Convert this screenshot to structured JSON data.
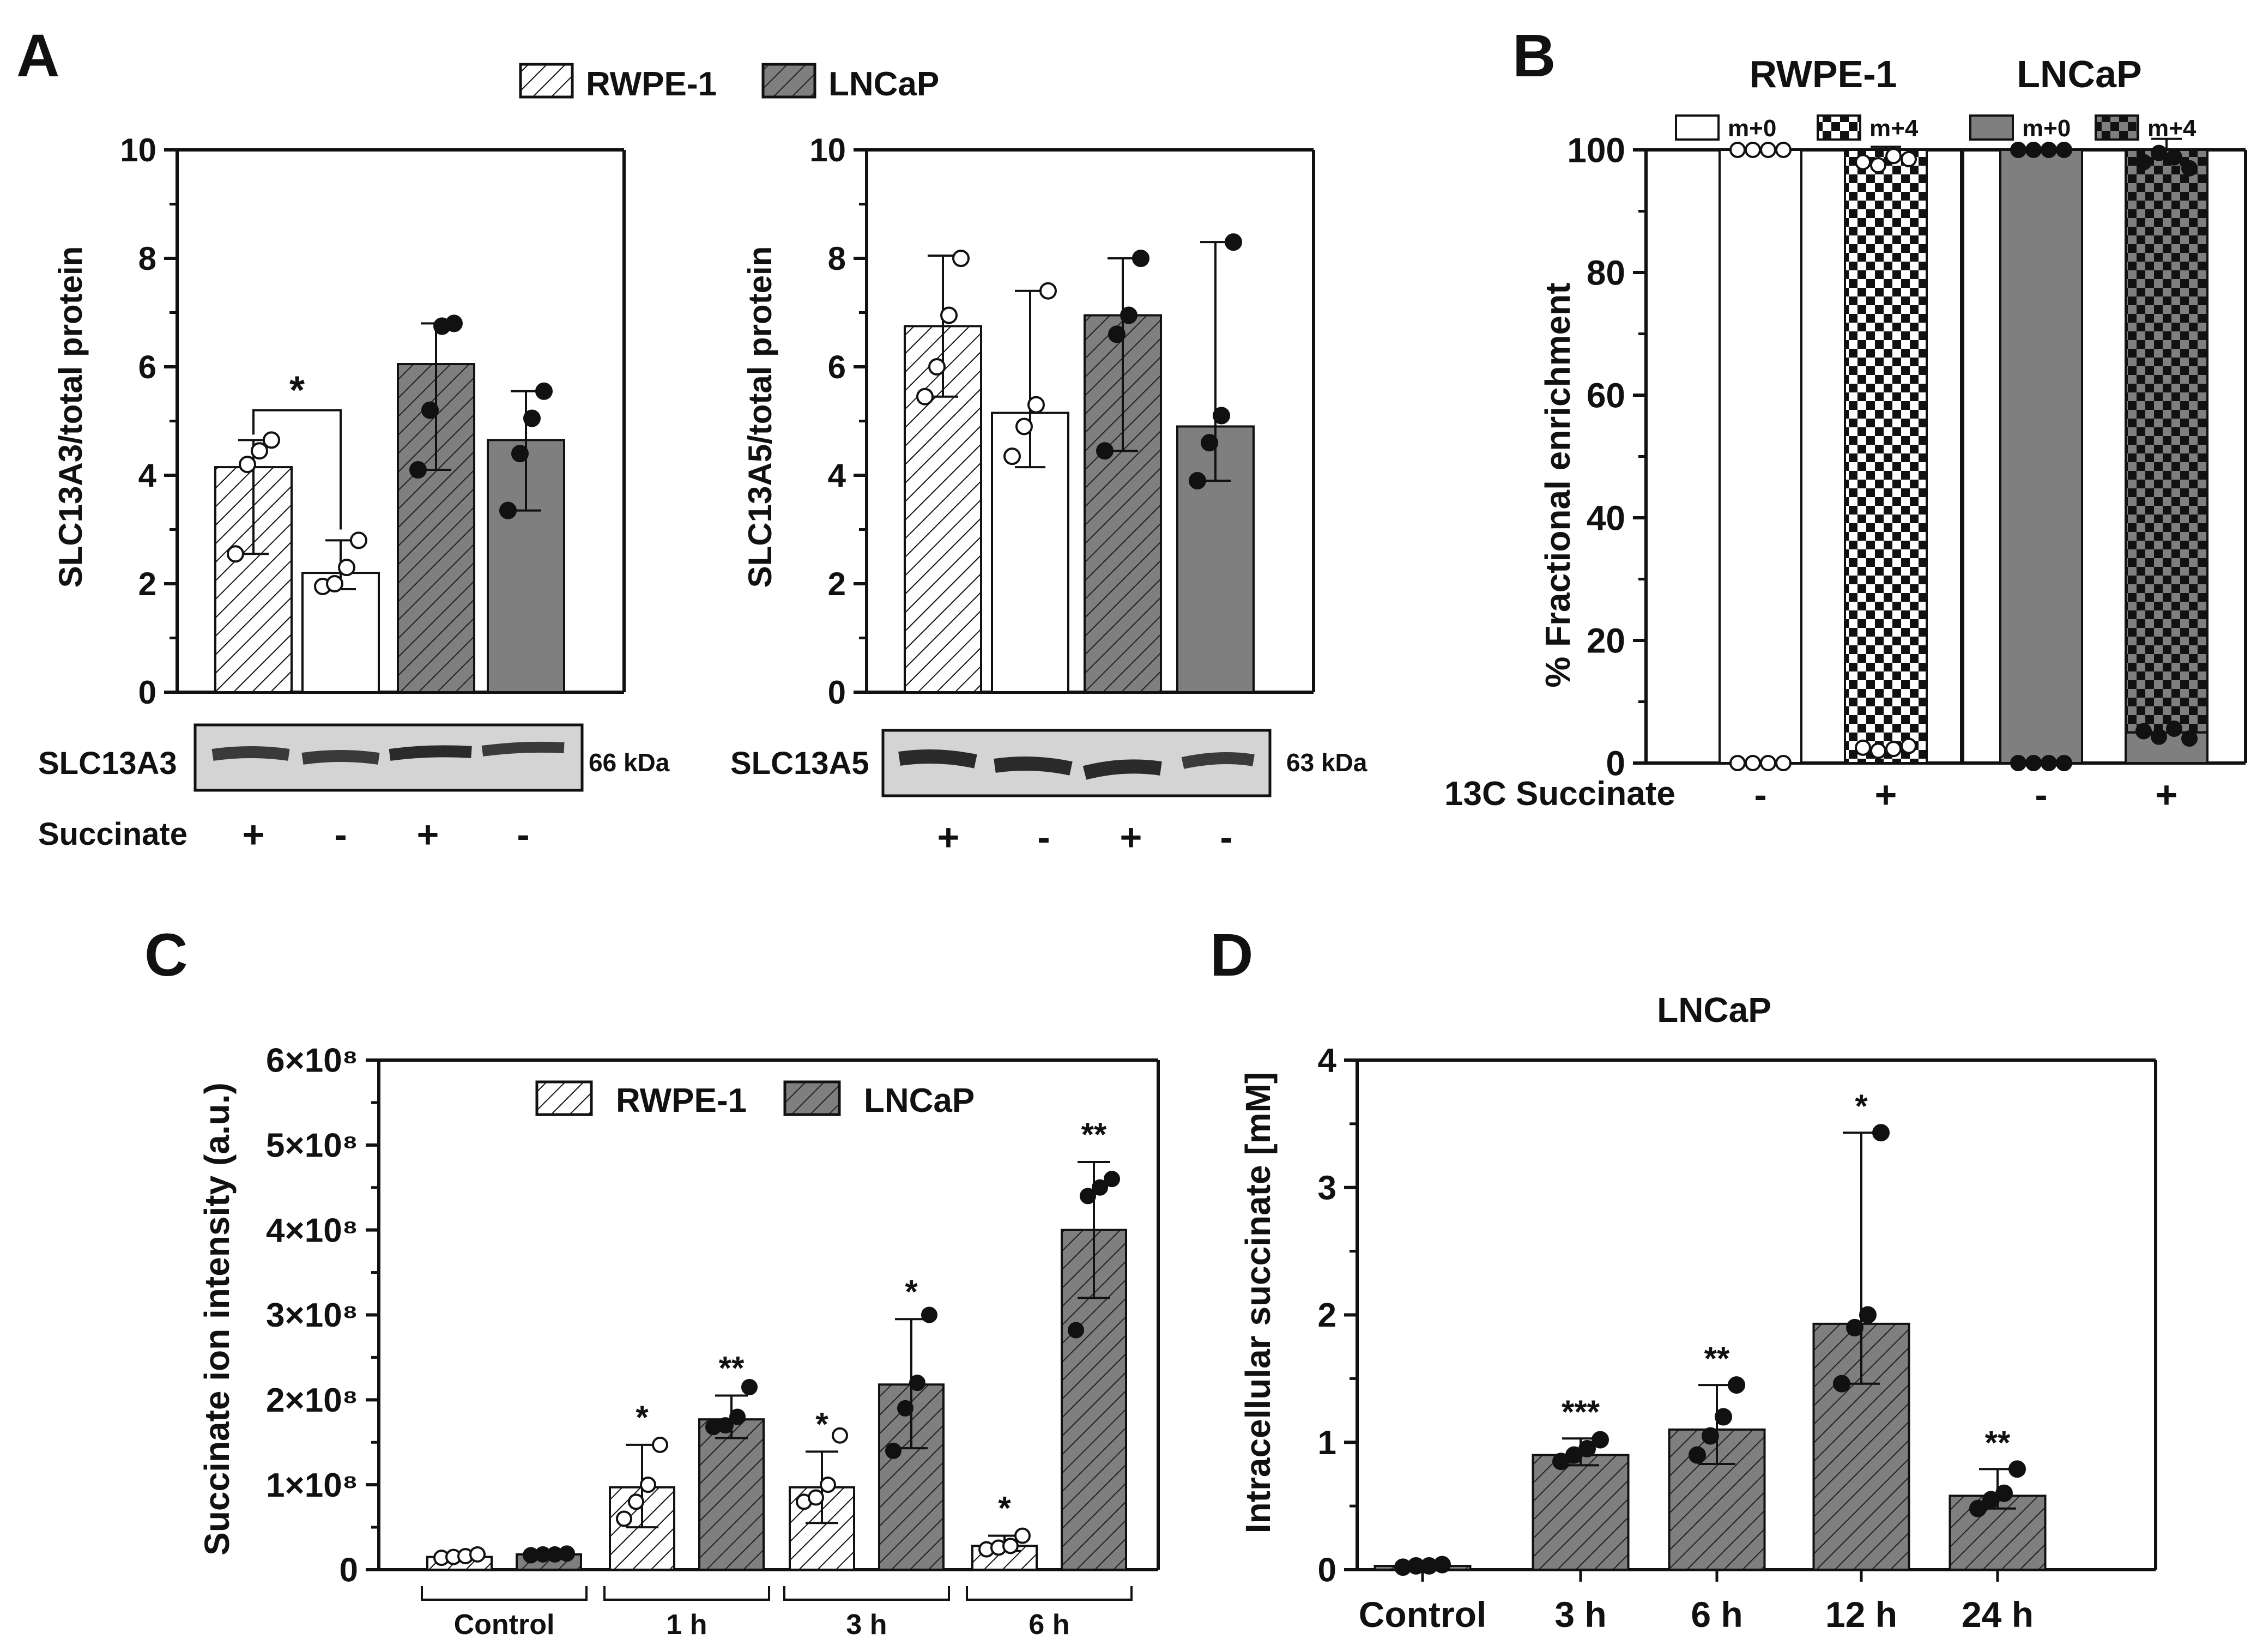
{
  "colors": {
    "lncap_fill": "#7f7f7f",
    "rwpe_fill": "#ffffff",
    "stroke": "#111111",
    "blot_bg": "#d4d4d4",
    "blot_band": "#3a3a3a"
  },
  "chart_data": [
    {
      "panel": "A",
      "id": "A1",
      "type": "bar",
      "title": "",
      "ylabel": "SLC13A3/total protein",
      "ylim": [
        0,
        10
      ],
      "yticks": [
        0,
        2,
        4,
        6,
        8,
        10
      ],
      "legend": {
        "placement": "top-center",
        "entries": [
          {
            "label": "RWPE-1",
            "style": "hatched-white"
          },
          {
            "label": "LNCaP",
            "style": "hatched-grey"
          }
        ]
      },
      "bars": [
        {
          "group": "RWPE-1",
          "succinate": "+",
          "style": "hatched-white",
          "mean": 4.15,
          "err": [
            2.55,
            4.65
          ],
          "points": [
            2.55,
            4.2,
            4.45,
            4.65
          ]
        },
        {
          "group": "RWPE-1",
          "succinate": "-",
          "style": "white",
          "mean": 2.2,
          "err": [
            1.9,
            2.8
          ],
          "points": [
            1.95,
            2.0,
            2.3,
            2.8
          ]
        },
        {
          "group": "LNCaP",
          "succinate": "+",
          "style": "hatched-grey",
          "mean": 6.05,
          "err": [
            4.1,
            6.8
          ],
          "points": [
            4.1,
            5.2,
            6.75,
            6.8
          ]
        },
        {
          "group": "LNCaP",
          "succinate": "-",
          "style": "grey",
          "mean": 4.65,
          "err": [
            3.35,
            5.55
          ],
          "points": [
            3.35,
            4.4,
            5.05,
            5.55
          ]
        }
      ],
      "significance": [
        {
          "from": 0,
          "to": 1,
          "label": "*"
        }
      ],
      "blot": {
        "protein": "SLC13A3",
        "mw": "66 kDa"
      },
      "condition_label": "Succinate",
      "condition_signs": [
        "+",
        "-",
        "+",
        "-"
      ]
    },
    {
      "panel": "A",
      "id": "A2",
      "type": "bar",
      "title": "",
      "ylabel": "SLC13A5/total protein",
      "ylim": [
        0,
        10
      ],
      "yticks": [
        0,
        2,
        4,
        6,
        8,
        10
      ],
      "bars": [
        {
          "group": "RWPE-1",
          "succinate": "+",
          "style": "hatched-white",
          "mean": 6.75,
          "err": [
            5.45,
            8.05
          ],
          "points": [
            5.45,
            6.0,
            6.95,
            8.0
          ]
        },
        {
          "group": "RWPE-1",
          "succinate": "-",
          "style": "white",
          "mean": 5.15,
          "err": [
            4.15,
            7.4
          ],
          "points": [
            4.35,
            4.9,
            5.3,
            7.4
          ]
        },
        {
          "group": "LNCaP",
          "succinate": "+",
          "style": "hatched-grey",
          "mean": 6.95,
          "err": [
            4.45,
            8.0
          ],
          "points": [
            4.45,
            6.6,
            6.95,
            8.0
          ]
        },
        {
          "group": "LNCaP",
          "succinate": "-",
          "style": "grey",
          "mean": 4.9,
          "err": [
            3.9,
            8.3
          ],
          "points": [
            3.9,
            4.6,
            5.1,
            8.3
          ]
        }
      ],
      "blot": {
        "protein": "SLC13A5",
        "mw": "63 kDa"
      },
      "condition_signs": [
        "+",
        "-",
        "+",
        "-"
      ]
    },
    {
      "panel": "B",
      "id": "B",
      "type": "bar",
      "subtype": "stacked",
      "ylabel": "% Fractional enrichment",
      "ylim": [
        0,
        100
      ],
      "yticks": [
        0,
        20,
        40,
        60,
        80,
        100
      ],
      "groups": [
        {
          "name": "RWPE-1",
          "legend": [
            {
              "label": "m+0",
              "style": "white"
            },
            {
              "label": "m+4",
              "style": "checker-white"
            }
          ]
        },
        {
          "name": "LNCaP",
          "legend": [
            {
              "label": "m+0",
              "style": "grey"
            },
            {
              "label": "m+4",
              "style": "checker-grey"
            }
          ]
        }
      ],
      "xlabel": "13C Succinate",
      "bars": [
        {
          "group": "RWPE-1",
          "sign": "-",
          "m0": 100,
          "m4": 0,
          "total": 100,
          "m4_points": [
            0,
            0,
            0,
            0
          ],
          "total_points": [
            100,
            100,
            100,
            100
          ]
        },
        {
          "group": "RWPE-1",
          "sign": "+",
          "m0": 0,
          "m4": 100,
          "total": 100,
          "err_top": 100.5,
          "m4_points": [
            2.5,
            2.0,
            2.3,
            2.8
          ],
          "total_points": [
            98.0,
            97.5,
            99.0,
            98.5
          ]
        },
        {
          "group": "LNCaP",
          "sign": "-",
          "m0": 100,
          "m4": 0,
          "total": 100,
          "m4_points": [
            0,
            0,
            0,
            0
          ],
          "total_points": [
            100,
            100,
            100,
            100
          ]
        },
        {
          "group": "LNCaP",
          "sign": "+",
          "m0": 5,
          "m4": 95,
          "total": 100,
          "err_top": 101.8,
          "m4_points": [
            5.2,
            4.3,
            5.6,
            4.0
          ],
          "total_points": [
            98.0,
            99.5,
            98.8,
            97.0
          ]
        }
      ]
    },
    {
      "panel": "C",
      "id": "C",
      "type": "bar",
      "ylabel": "Succinate ion intensity (a.u.)",
      "ylim": [
        0,
        600000000
      ],
      "yticks": [
        {
          "value": 0,
          "label": "0"
        },
        {
          "value": 100000000,
          "label": "1×10⁸"
        },
        {
          "value": 200000000,
          "label": "2×10⁸"
        },
        {
          "value": 300000000,
          "label": "3×10⁸"
        },
        {
          "value": 400000000,
          "label": "4×10⁸"
        },
        {
          "value": 500000000,
          "label": "5×10⁸"
        },
        {
          "value": 600000000,
          "label": "6×10⁸"
        }
      ],
      "legend": {
        "placement": "top-center",
        "entries": [
          {
            "label": "RWPE-1",
            "style": "hatched-white"
          },
          {
            "label": "LNCaP",
            "style": "hatched-grey"
          }
        ]
      },
      "categories": [
        "Control",
        "1 h",
        "3 h",
        "6 h"
      ],
      "series": [
        {
          "name": "RWPE-1",
          "style": "hatched-white",
          "values": [
            15000000,
            97000000,
            97000000,
            28000000
          ],
          "err": [
            [
              12000000,
              18000000
            ],
            [
              50000000,
              147000000
            ],
            [
              55000000,
              139000000
            ],
            [
              22000000,
              40000000
            ]
          ],
          "points": [
            [
              14000000,
              15000000,
              16000000,
              18000000
            ],
            [
              60000000,
              80000000,
              100000000,
              147000000
            ],
            [
              80000000,
              85000000,
              100000000,
              158000000
            ],
            [
              24000000,
              26000000,
              28000000,
              40000000
            ]
          ],
          "stars": [
            "",
            "*",
            "*",
            "*"
          ]
        },
        {
          "name": "LNCaP",
          "style": "hatched-grey",
          "values": [
            18000000,
            177000000,
            218000000,
            400000000
          ],
          "err": [
            [
              16000000,
              20000000
            ],
            [
              155000000,
              205000000
            ],
            [
              143000000,
              295000000
            ],
            [
              320000000,
              480000000
            ]
          ],
          "points": [
            [
              17000000,
              18000000,
              18000000,
              19000000
            ],
            [
              168000000,
              170000000,
              180000000,
              215000000
            ],
            [
              140000000,
              190000000,
              220000000,
              300000000
            ],
            [
              282000000,
              440000000,
              450000000,
              460000000
            ]
          ],
          "stars": [
            "",
            "**",
            "*",
            "**"
          ]
        }
      ]
    },
    {
      "panel": "D",
      "id": "D",
      "type": "bar",
      "title": "LNCaP",
      "ylabel": "Intracellular succinate [mM]",
      "ylim": [
        0,
        4
      ],
      "yticks": [
        0,
        1,
        2,
        3,
        4
      ],
      "categories": [
        "Control",
        "3 h",
        "6 h",
        "12 h",
        "24 h"
      ],
      "values": [
        0.03,
        0.9,
        1.1,
        1.93,
        0.58
      ],
      "err": [
        [
          0.02,
          0.04
        ],
        [
          0.82,
          1.03
        ],
        [
          0.83,
          1.45
        ],
        [
          1.46,
          3.43
        ],
        [
          0.48,
          0.79
        ]
      ],
      "points": [
        [
          0.02,
          0.03,
          0.03,
          0.04
        ],
        [
          0.85,
          0.9,
          0.95,
          1.02
        ],
        [
          0.9,
          1.05,
          1.2,
          1.45
        ],
        [
          1.46,
          1.9,
          2.0,
          3.43
        ],
        [
          0.48,
          0.55,
          0.6,
          0.79
        ]
      ],
      "stars": [
        "",
        "***",
        "**",
        "*",
        "**"
      ]
    }
  ],
  "labels": {
    "panel_a": "A",
    "panel_b": "B",
    "panel_c": "C",
    "panel_d": "D"
  }
}
